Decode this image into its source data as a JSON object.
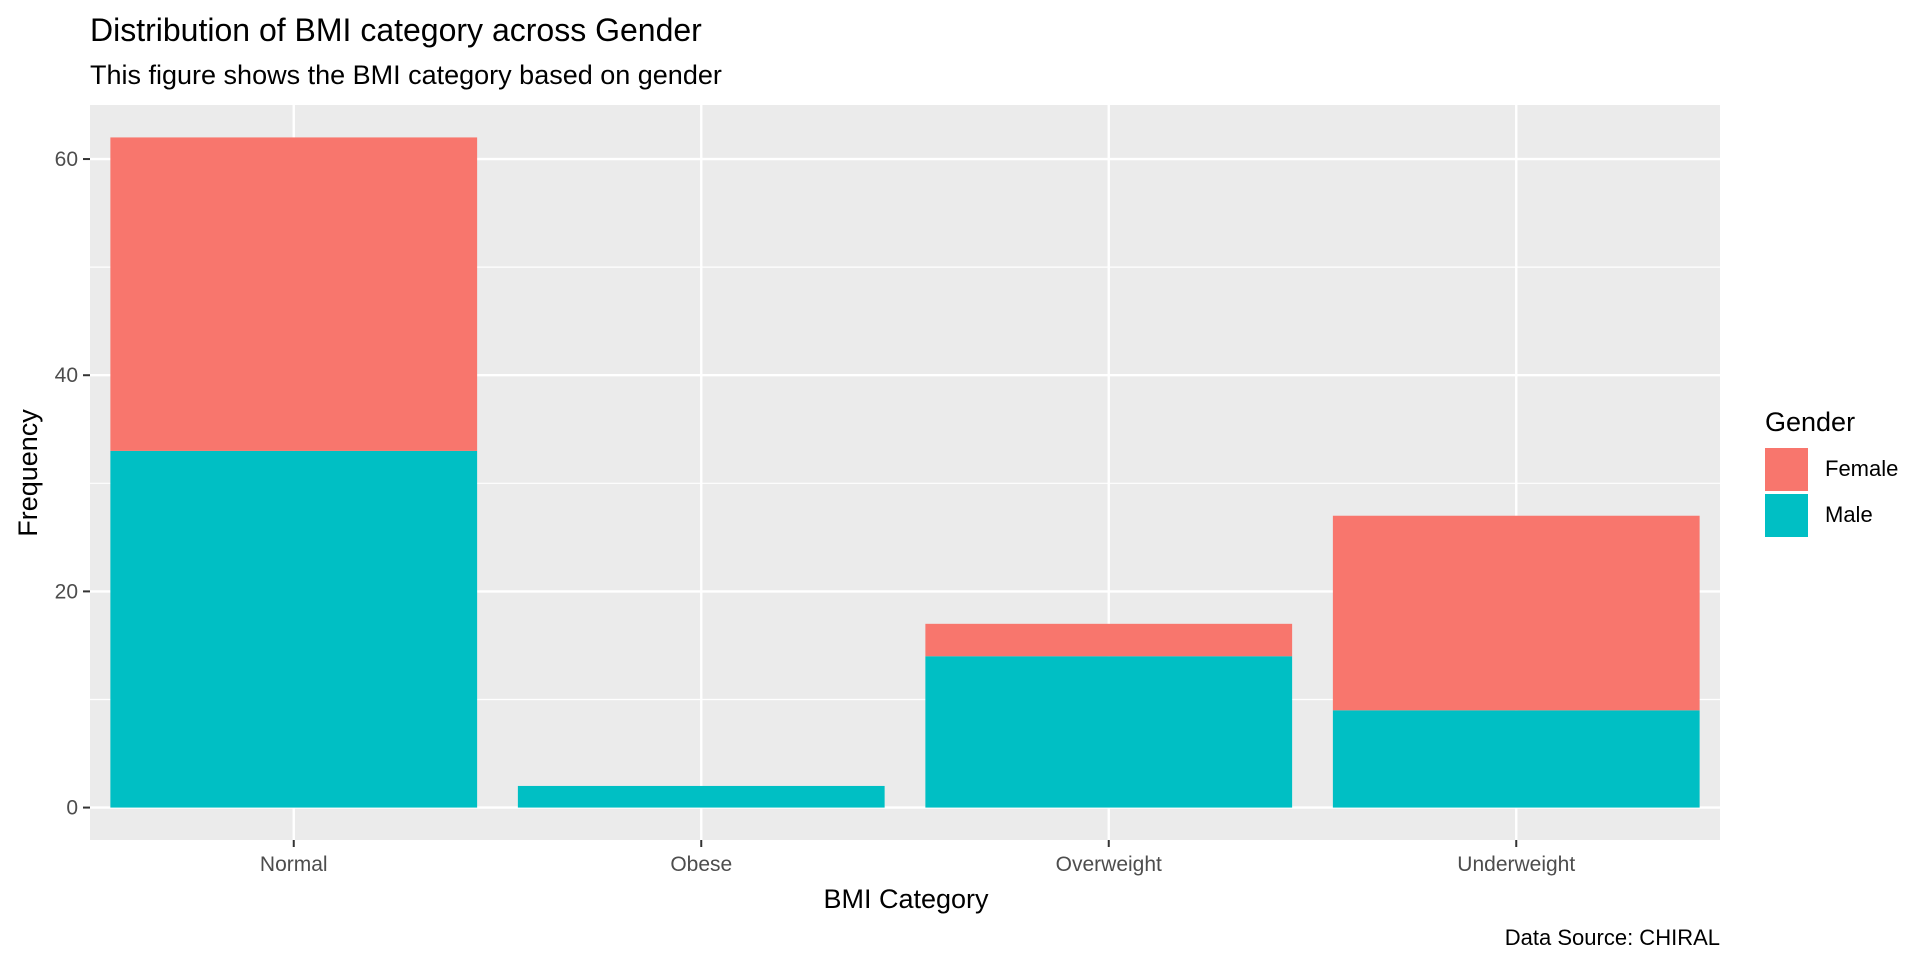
{
  "chart_data": {
    "type": "bar",
    "stacked": true,
    "title": "Distribution of BMI category across Gender",
    "subtitle": "This figure shows the BMI category based on gender",
    "caption": "Data Source: CHIRAL",
    "xlabel": "BMI Category",
    "ylabel": "Frequency",
    "categories": [
      "Normal",
      "Obese",
      "Overweight",
      "Underweight"
    ],
    "series": [
      {
        "name": "Male",
        "color": "#00BFC4",
        "values": [
          33,
          2,
          14,
          9
        ]
      },
      {
        "name": "Female",
        "color": "#F8766D",
        "values": [
          29,
          0,
          3,
          18
        ]
      }
    ],
    "ylim": [
      -3,
      65
    ],
    "yticks": [
      0,
      20,
      40,
      60
    ],
    "ytick_labels": [
      "0",
      "20",
      "40",
      "60"
    ],
    "grid": true,
    "legend": {
      "title": "Gender",
      "placement": "right",
      "entries": [
        {
          "label": "Female",
          "color": "#F8766D"
        },
        {
          "label": "Male",
          "color": "#00BFC4"
        }
      ]
    },
    "panel_color": "#EBEBEB",
    "grid_color": "#FFFFFF"
  }
}
